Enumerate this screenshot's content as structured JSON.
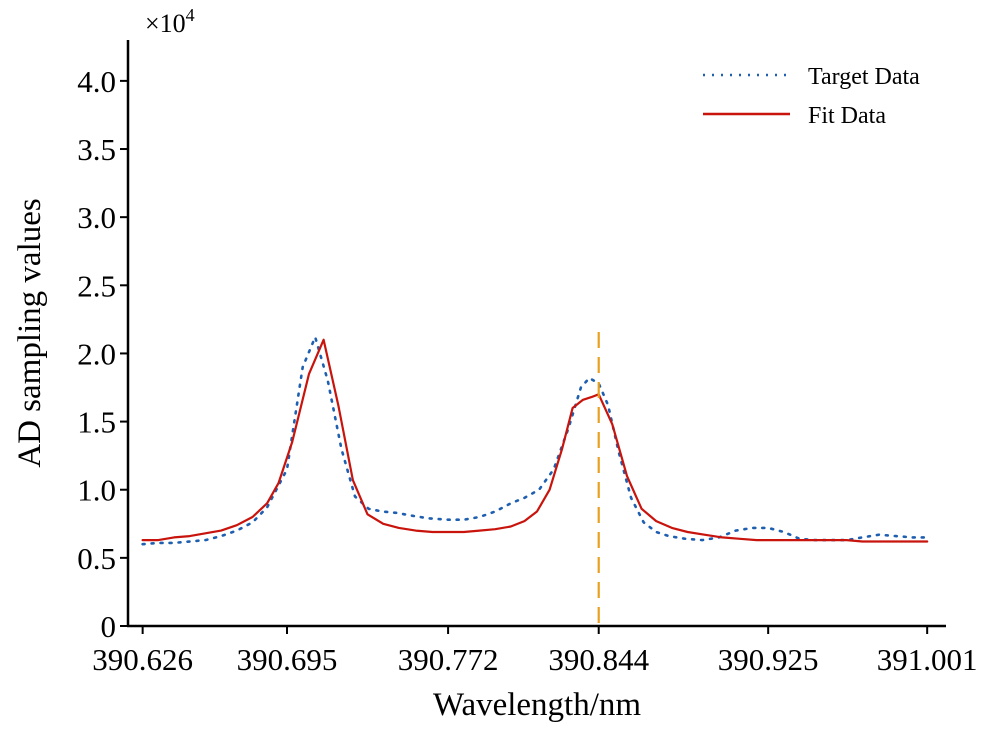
{
  "chart_data": {
    "type": "line",
    "title": "",
    "xlabel": "Wavelength/nm",
    "ylabel": "AD sampling values",
    "y_multiplier": "×10",
    "y_multiplier_exp": "4",
    "x_tick_labels": [
      "390.626",
      "390.695",
      "390.772",
      "390.844",
      "390.925",
      "391.001"
    ],
    "x_tick_values": [
      390.626,
      390.695,
      390.772,
      390.844,
      390.925,
      391.001
    ],
    "y_tick_labels": [
      "0",
      "0.5",
      "1.0",
      "1.5",
      "2.0",
      "2.5",
      "3.0",
      "3.5",
      "4.0"
    ],
    "y_tick_values": [
      0,
      0.5,
      1.0,
      1.5,
      2.0,
      2.5,
      3.0,
      3.5,
      4.0
    ],
    "xlim": [
      390.619,
      391.01
    ],
    "ylim": [
      0,
      4.3
    ],
    "grid": false,
    "legend_position": "top-right",
    "vline": {
      "x": 390.844,
      "color": "#e8a020",
      "style": "dashed"
    },
    "series": [
      {
        "name": "Target Data",
        "color": "#1f5fb0",
        "style": "dotted",
        "x": [
          390.626,
          390.6335,
          390.641,
          390.6485,
          390.656,
          390.6635,
          390.671,
          390.6785,
          390.6855,
          390.695,
          390.7025,
          390.7085,
          390.7145,
          390.721,
          390.7275,
          390.734,
          390.7405,
          390.7475,
          390.7545,
          390.7625,
          390.772,
          390.7795,
          390.787,
          390.7945,
          390.802,
          390.8085,
          390.8155,
          390.8225,
          390.8295,
          390.8355,
          390.8395,
          390.844,
          390.8485,
          390.8535,
          390.8595,
          390.8655,
          390.8715,
          390.8775,
          390.8855,
          390.8935,
          390.9015,
          390.9095,
          390.9175,
          390.925,
          390.9325,
          390.94,
          390.9475,
          390.955,
          390.9625,
          390.97,
          390.978,
          390.986,
          390.994,
          391.001
        ],
        "y": [
          0.6,
          0.61,
          0.61,
          0.62,
          0.63,
          0.66,
          0.7,
          0.76,
          0.87,
          1.15,
          1.9,
          2.12,
          1.8,
          1.3,
          0.95,
          0.86,
          0.84,
          0.83,
          0.81,
          0.79,
          0.78,
          0.78,
          0.8,
          0.84,
          0.9,
          0.94,
          1.0,
          1.15,
          1.45,
          1.75,
          1.82,
          1.78,
          1.62,
          1.28,
          0.94,
          0.76,
          0.69,
          0.66,
          0.64,
          0.63,
          0.65,
          0.7,
          0.72,
          0.72,
          0.69,
          0.64,
          0.63,
          0.63,
          0.63,
          0.65,
          0.67,
          0.66,
          0.65,
          0.65
        ]
      },
      {
        "name": "Fit Data",
        "color": "#c8140c",
        "style": "solid",
        "x": [
          390.626,
          390.6335,
          390.641,
          390.6485,
          390.656,
          390.6635,
          390.671,
          390.6785,
          390.6855,
          390.691,
          390.6975,
          390.7055,
          390.7125,
          390.7195,
          390.7265,
          390.7335,
          390.741,
          390.7485,
          390.7565,
          390.7645,
          390.772,
          390.7795,
          390.787,
          390.7945,
          390.802,
          390.8085,
          390.8145,
          390.8205,
          390.8265,
          390.8315,
          390.8365,
          390.8405,
          390.844,
          390.8505,
          390.8575,
          390.8645,
          390.8715,
          390.879,
          390.8865,
          390.8945,
          390.903,
          390.9115,
          390.9195,
          390.925,
          390.9325,
          390.94,
          390.9475,
          390.955,
          390.9625,
          390.97,
          390.978,
          390.986,
          390.994,
          391.001
        ],
        "y": [
          0.63,
          0.63,
          0.65,
          0.66,
          0.68,
          0.7,
          0.74,
          0.8,
          0.9,
          1.05,
          1.35,
          1.85,
          2.1,
          1.62,
          1.07,
          0.82,
          0.75,
          0.72,
          0.7,
          0.69,
          0.69,
          0.69,
          0.7,
          0.71,
          0.73,
          0.77,
          0.84,
          1.0,
          1.3,
          1.6,
          1.66,
          1.68,
          1.7,
          1.48,
          1.1,
          0.86,
          0.77,
          0.72,
          0.69,
          0.67,
          0.65,
          0.64,
          0.63,
          0.63,
          0.63,
          0.63,
          0.63,
          0.63,
          0.63,
          0.62,
          0.62,
          0.62,
          0.62,
          0.62
        ]
      }
    ]
  }
}
